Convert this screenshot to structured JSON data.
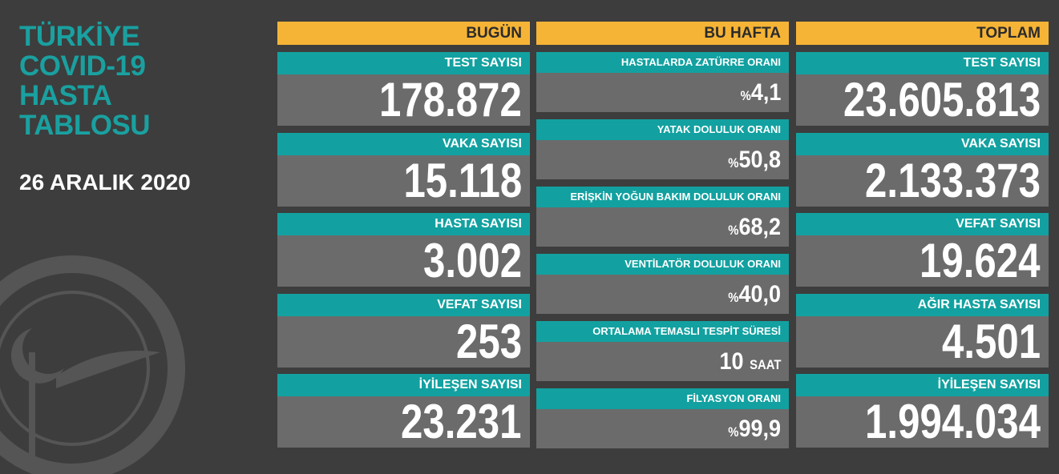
{
  "title": [
    "TÜRKİYE",
    "COVID-19",
    "HASTA",
    "TABLOSU"
  ],
  "date": "26 ARALIK 2020",
  "columns": [
    {
      "header": "BUGÜN",
      "items": [
        {
          "label": "TEST SAYISI",
          "value": "178.872"
        },
        {
          "label": "VAKA SAYISI",
          "value": "15.118"
        },
        {
          "label": "HASTA SAYISI",
          "value": "3.002"
        },
        {
          "label": "VEFAT SAYISI",
          "value": "253"
        },
        {
          "label": "İYİLEŞEN SAYISI",
          "value": "23.231"
        }
      ]
    },
    {
      "header": "BU HAFTA",
      "items": [
        {
          "label": "HASTALARDA ZATÜRRE ORANI",
          "prefix": "%",
          "value": "4,1"
        },
        {
          "label": "YATAK DOLULUK ORANI",
          "prefix": "%",
          "value": "50,8"
        },
        {
          "label": "ERİŞKİN YOĞUN BAKIM DOLULUK ORANI",
          "prefix": "%",
          "value": "68,2"
        },
        {
          "label": "VENTİLATÖR DOLULUK ORANI",
          "prefix": "%",
          "value": "40,0"
        },
        {
          "label": "ORTALAMA TEMASLI TESPİT SÜRESİ",
          "value": "10",
          "suffix": "SAAT"
        },
        {
          "label": "FİLYASYON ORANI",
          "prefix": "%",
          "value": "99,9"
        }
      ]
    },
    {
      "header": "TOPLAM",
      "items": [
        {
          "label": "TEST SAYISI",
          "value": "23.605.813"
        },
        {
          "label": "VAKA SAYISI",
          "value": "2.133.373"
        },
        {
          "label": "VEFAT SAYISI",
          "value": "19.624"
        },
        {
          "label": "AĞIR HASTA SAYISI",
          "value": "4.501"
        },
        {
          "label": "İYİLEŞEN SAYISI",
          "value": "1.994.034"
        }
      ]
    }
  ]
}
